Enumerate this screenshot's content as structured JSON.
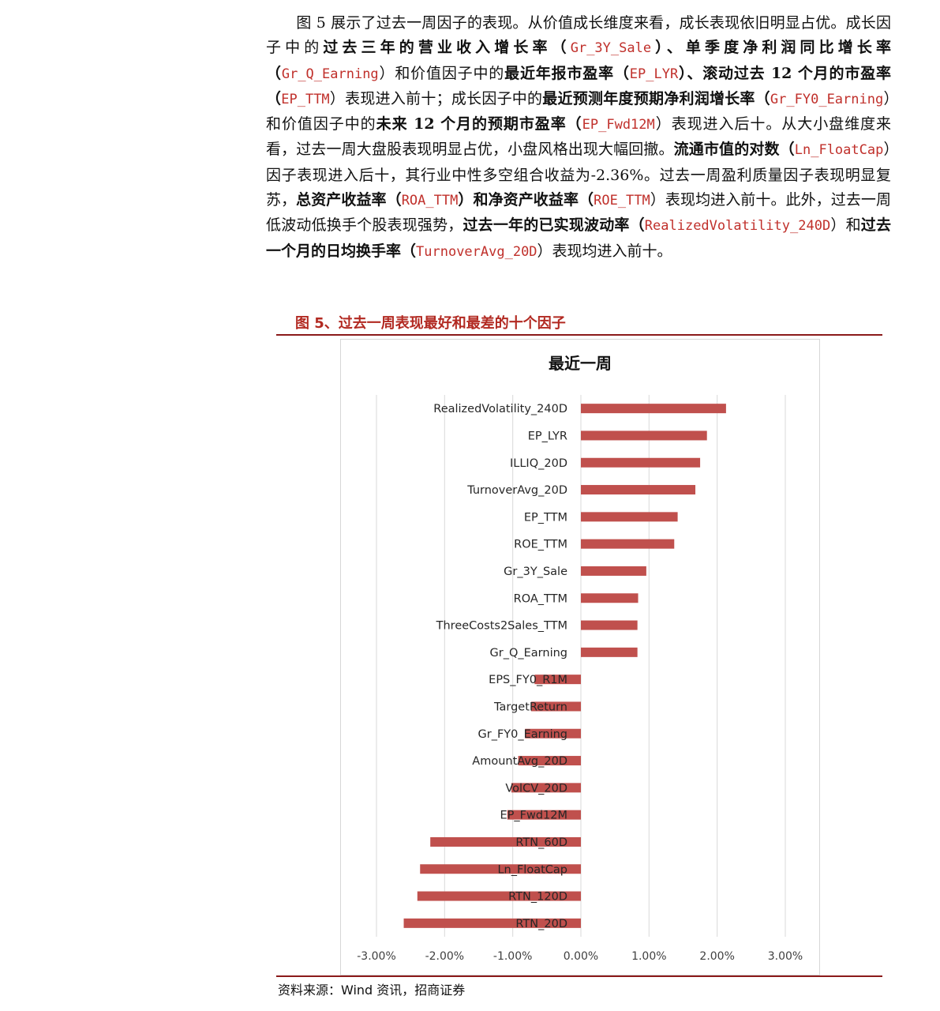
{
  "paragraph": [
    {
      "text": "　　图 5 展示了过去一周因子的表现。从价值成长维度来看，成长表现依旧明显占优。成长因子中的",
      "style": "n"
    },
    {
      "text": "过去三年的营业收入增长率（",
      "style": "b"
    },
    {
      "text": "Gr_3Y_Sale",
      "style": "r"
    },
    {
      "text": "）、单季度净利润同比增长率（",
      "style": "b"
    },
    {
      "text": "Gr_Q_Earning",
      "style": "r"
    },
    {
      "text": "）和价值因子中的",
      "style": "n"
    },
    {
      "text": "最近年报市盈率（",
      "style": "b"
    },
    {
      "text": "EP_LYR",
      "style": "r"
    },
    {
      "text": "）、滚动过去 12 个月的市盈率（",
      "style": "b"
    },
    {
      "text": "EP_TTM",
      "style": "r"
    },
    {
      "text": "）表现进入前十；成长因子中的",
      "style": "n"
    },
    {
      "text": "最近预测年度预期净利润增长率（",
      "style": "b"
    },
    {
      "text": "Gr_FY0_Earning",
      "style": "r"
    },
    {
      "text": "）和价值因子中的",
      "style": "n"
    },
    {
      "text": "未来 12 个月的预期市盈率（",
      "style": "b"
    },
    {
      "text": "EP_Fwd12M",
      "style": "r"
    },
    {
      "text": "）表现进入后十。从大小盘维度来看，过去一周大盘股表现明显占优，小盘风格出现大幅回撤。",
      "style": "n"
    },
    {
      "text": "流通市值的对数（",
      "style": "b"
    },
    {
      "text": "Ln_FloatCap",
      "style": "r"
    },
    {
      "text": "）因子表现进入后十，其行业中性多空组合收益为-2.36%。过去一周盈利质量因子表现明显复苏，",
      "style": "n"
    },
    {
      "text": "总资产收益率（",
      "style": "b"
    },
    {
      "text": "ROA_TTM",
      "style": "r"
    },
    {
      "text": "）和净资产收益率（",
      "style": "b"
    },
    {
      "text": "ROE_TTM",
      "style": "r"
    },
    {
      "text": "）表现均进入前十。此外，过去一周低波动低换手个股表现强势，",
      "style": "n"
    },
    {
      "text": "过去一年的已实现波动率（",
      "style": "b"
    },
    {
      "text": "RealizedVolatility_240D",
      "style": "r"
    },
    {
      "text": "）和",
      "style": "n"
    },
    {
      "text": "过去一个月的日均换手率（",
      "style": "b"
    },
    {
      "text": "TurnoverAvg_20D",
      "style": "r"
    },
    {
      "text": "）表现均进入前十。",
      "style": "n"
    }
  ],
  "figure": {
    "title": "图 5、过去一周表现最好和最差的十个因子",
    "source": "资料来源：Wind 资讯，招商证券"
  },
  "colors": {
    "bar": "#c0504d",
    "grid": "#d9d9d9",
    "title_red": "#b22a22",
    "rule": "#8b1a1a"
  },
  "chart_data": {
    "type": "bar",
    "orientation": "horizontal",
    "title": "最近一周",
    "categories": [
      "RealizedVolatility_240D",
      "EP_LYR",
      "ILLIQ_20D",
      "TurnoverAvg_20D",
      "EP_TTM",
      "ROE_TTM",
      "Gr_3Y_Sale",
      "ROA_TTM",
      "ThreeCosts2Sales_TTM",
      "Gr_Q_Earning",
      "EPS_FY0_R1M",
      "TargetReturn",
      "Gr_FY0_Earning",
      "AmountAvg_20D",
      "VolCV_20D",
      "EP_Fwd12M",
      "RTN_60D",
      "Ln_FloatCap",
      "RTN_120D",
      "RTN_20D"
    ],
    "values": [
      2.13,
      1.85,
      1.75,
      1.68,
      1.42,
      1.37,
      0.96,
      0.84,
      0.83,
      0.83,
      -0.68,
      -0.73,
      -0.82,
      -0.92,
      -1.02,
      -1.08,
      -2.21,
      -2.36,
      -2.4,
      -2.6
    ],
    "xlim": [
      -3.0,
      3.0
    ],
    "xticks": [
      -3,
      -2,
      -1,
      0,
      1,
      2,
      3
    ],
    "xtick_labels": [
      "-3.00%",
      "-2.00%",
      "-1.00%",
      "0.00%",
      "1.00%",
      "2.00%",
      "3.00%"
    ],
    "unit": "%",
    "grid": true,
    "legend": "none"
  }
}
